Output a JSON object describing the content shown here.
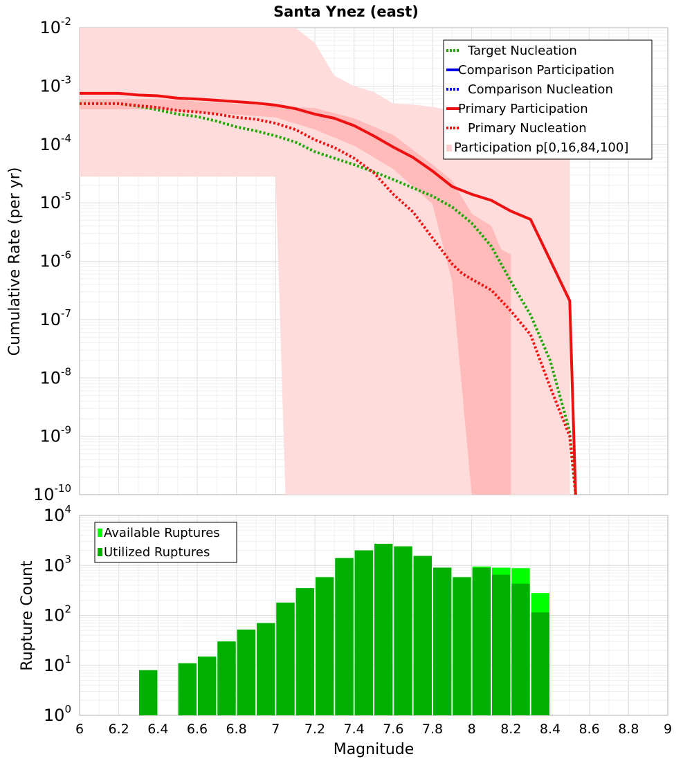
{
  "chart_data": [
    {
      "type": "line",
      "title": "Santa Ynez (east)",
      "xlabel": "",
      "ylabel": "Cumulative Rate (per yr)",
      "yscale": "log",
      "xlim": [
        6,
        9
      ],
      "ylim_exp": [
        -10,
        -2
      ],
      "grid": true,
      "legend_position": "top-right",
      "legend": [
        {
          "label": "Target Nucleation",
          "color": "#1aa800",
          "style": "dotted"
        },
        {
          "label": "Comparison Participation",
          "color": "#0000ee",
          "style": "solid"
        },
        {
          "label": "Comparison Nucleation",
          "color": "#0000ee",
          "style": "dotted"
        },
        {
          "label": "Primary Participation",
          "color": "#ee1111",
          "style": "solid"
        },
        {
          "label": "Primary Nucleation",
          "color": "#ee1111",
          "style": "dotted"
        },
        {
          "label": "Participation p[0,16,84,100]",
          "color": "#ffd0d0",
          "style": "band"
        }
      ],
      "series": [
        {
          "name": "Primary Participation",
          "color": "#ee1111",
          "style": "solid",
          "x": [
            6.0,
            6.2,
            6.3,
            6.4,
            6.5,
            6.6,
            6.7,
            6.8,
            6.9,
            7.0,
            7.1,
            7.2,
            7.3,
            7.4,
            7.5,
            7.6,
            7.7,
            7.8,
            7.9,
            8.0,
            8.1,
            8.2,
            8.3,
            8.5,
            8.53
          ],
          "y": [
            0.00075,
            0.00075,
            0.0007,
            0.00068,
            0.00062,
            0.0006,
            0.00057,
            0.00054,
            0.00051,
            0.00047,
            0.00041,
            0.00033,
            0.00028,
            0.00021,
            0.00014,
            9e-05,
            6e-05,
            3.5e-05,
            1.9e-05,
            1.4e-05,
            1.1e-05,
            7.2e-06,
            5.2e-06,
            2.1e-07,
            1e-10
          ]
        },
        {
          "name": "Target Nucleation",
          "color": "#1aa800",
          "style": "dotted",
          "x": [
            6.0,
            6.2,
            6.3,
            6.4,
            6.5,
            6.6,
            6.7,
            6.8,
            6.9,
            7.0,
            7.1,
            7.2,
            7.3,
            7.4,
            7.5,
            7.6,
            7.7,
            7.8,
            7.9,
            8.0,
            8.1,
            8.2,
            8.3,
            8.4,
            8.5,
            8.53
          ],
          "y": [
            0.0005,
            0.0005,
            0.00045,
            0.00039,
            0.00033,
            0.0003,
            0.00025,
            0.0002,
            0.00017,
            0.00014,
            0.00011,
            7.5e-05,
            5.8e-05,
            4.5e-05,
            3.4e-05,
            2.5e-05,
            1.8e-05,
            1.3e-05,
            8.5e-06,
            4.5e-06,
            1.8e-06,
            4.5e-07,
            1.2e-07,
            2e-08,
            1.2e-09,
            1e-10
          ]
        },
        {
          "name": "Primary Nucleation",
          "color": "#ee1111",
          "style": "dotted",
          "x": [
            6.0,
            6.2,
            6.3,
            6.4,
            6.5,
            6.6,
            6.7,
            6.8,
            6.9,
            7.0,
            7.1,
            7.2,
            7.3,
            7.4,
            7.5,
            7.6,
            7.7,
            7.8,
            7.9,
            7.95,
            8.0,
            8.1,
            8.2,
            8.3,
            8.4,
            8.5,
            8.53
          ],
          "y": [
            0.0005,
            0.0005,
            0.00046,
            0.00043,
            0.00038,
            0.00036,
            0.00033,
            0.00029,
            0.00027,
            0.00023,
            0.00018,
            0.00012,
            8.8e-05,
            5.8e-05,
            3.3e-05,
            1.4e-05,
            7e-06,
            2.5e-06,
            9e-07,
            6.2e-07,
            4.9e-07,
            3.2e-07,
            1.4e-07,
            5.5e-08,
            7e-09,
            1e-09,
            1e-10
          ]
        }
      ],
      "bands": [
        {
          "name": "Participation p[0,100]",
          "color": "#ffdcdc",
          "x": [
            6.0,
            6.3,
            6.4,
            7.0,
            7.05,
            7.1,
            7.2,
            7.3,
            7.4,
            7.5,
            7.6,
            7.7,
            7.8,
            7.9,
            8.0,
            8.1,
            8.2,
            8.3,
            8.4,
            8.5
          ],
          "upper": [
            0.01,
            0.01,
            0.01,
            0.01,
            0.01,
            0.01,
            0.0055,
            0.0015,
            0.001,
            0.0008,
            0.0005,
            0.00048,
            0.00044,
            0.00038,
            0.00036,
            0.00032,
            0.0003,
            0.00025,
            0.00025,
            0.00025
          ],
          "lower": [
            2.8e-05,
            2.8e-05,
            2.8e-05,
            2.8e-05,
            1e-10,
            1e-10,
            1e-10,
            1e-10,
            1e-10,
            1e-10,
            1e-10,
            1e-10,
            1e-10,
            1e-10,
            1e-10,
            1e-10,
            1e-10,
            1e-10,
            1e-10,
            1e-10
          ]
        },
        {
          "name": "Participation p[16,84]",
          "color": "#ffb4b4",
          "x": [
            6.0,
            6.4,
            7.0,
            7.2,
            7.4,
            7.6,
            7.8,
            7.9,
            8.0,
            8.1,
            8.15,
            8.2
          ],
          "upper": [
            0.0006,
            0.0006,
            0.00045,
            0.00042,
            0.00028,
            0.000145,
            4.5e-05,
            2.4e-05,
            6.5e-06,
            4e-06,
            1.6e-06,
            1.3e-06
          ],
          "lower": [
            0.0004,
            0.0004,
            0.00029,
            0.00018,
            9.5e-05,
            3.8e-05,
            9.5e-06,
            4.5e-07,
            1e-10,
            1e-10,
            1e-10,
            1e-10
          ]
        }
      ]
    },
    {
      "type": "bar",
      "title": "",
      "xlabel": "Magnitude",
      "ylabel": "Rupture Count",
      "yscale": "log",
      "xlim": [
        6,
        9
      ],
      "ylim_exp": [
        0,
        4
      ],
      "grid": true,
      "legend_position": "top-left",
      "legend": [
        {
          "label": "Available Ruptures",
          "color": "#00ff00"
        },
        {
          "label": "Utilized Ruptures",
          "color": "#00b000"
        }
      ],
      "bin_width": 0.1,
      "bins_start": [
        6.3,
        6.5,
        6.6,
        6.7,
        6.8,
        6.9,
        7.0,
        7.1,
        7.2,
        7.3,
        7.4,
        7.5,
        7.6,
        7.7,
        7.8,
        7.9,
        8.0,
        8.1,
        8.2,
        8.3
      ],
      "series": [
        {
          "name": "Available Ruptures",
          "color": "#00ff00",
          "values": [
            8,
            11,
            15,
            30,
            52,
            70,
            180,
            350,
            580,
            1400,
            2000,
            2700,
            2400,
            1550,
            900,
            580,
            950,
            900,
            880,
            280
          ]
        },
        {
          "name": "Utilized Ruptures",
          "color": "#00b000",
          "values": [
            8,
            11,
            15,
            30,
            52,
            70,
            180,
            350,
            580,
            1400,
            2000,
            2700,
            2400,
            1550,
            900,
            580,
            900,
            650,
            430,
            115
          ]
        }
      ],
      "x_ticks": [
        "6",
        "6.2",
        "6.4",
        "6.6",
        "6.8",
        "7",
        "7.2",
        "7.4",
        "7.6",
        "7.8",
        "8",
        "8.2",
        "8.4",
        "8.6",
        "8.8",
        "9"
      ]
    }
  ]
}
